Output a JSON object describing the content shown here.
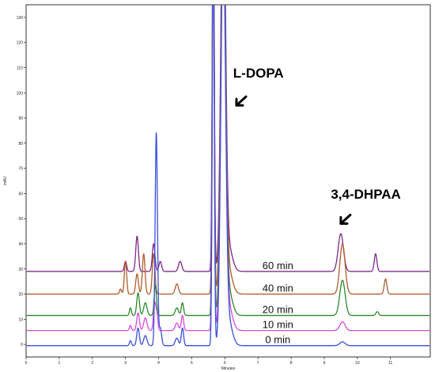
{
  "chart_data": {
    "type": "line",
    "title": "",
    "xlabel": "Minutes",
    "ylabel": "mAU",
    "xlim": [
      0,
      12.2
    ],
    "ylim": [
      -5,
      135
    ],
    "x_ticks": [
      0,
      1,
      2,
      3,
      4,
      5,
      6,
      7,
      8,
      9,
      10,
      11
    ],
    "y_ticks": [
      0,
      10,
      20,
      30,
      40,
      50,
      60,
      70,
      80,
      90,
      100,
      110,
      120,
      130
    ],
    "grid": false,
    "legend": "none",
    "series": [
      {
        "name": "0 min",
        "color": "#3a4fd8",
        "baseline": -0.5,
        "peaks": [
          [
            3.15,
            2,
            0.03
          ],
          [
            3.38,
            7,
            0.04
          ],
          [
            3.6,
            4,
            0.05
          ],
          [
            3.93,
            84.5,
            0.035
          ],
          [
            4.05,
            7,
            0.04
          ],
          [
            4.55,
            3,
            0.05
          ],
          [
            4.72,
            7,
            0.035
          ],
          [
            5.65,
            160,
            0.03
          ],
          [
            5.95,
            160,
            0.07
          ],
          [
            6.1,
            10,
            0.12
          ],
          [
            9.55,
            1.5,
            0.08
          ]
        ]
      },
      {
        "name": "10 min",
        "color": "#d84ad8",
        "baseline": 5.5,
        "peaks": [
          [
            3.15,
            2,
            0.03
          ],
          [
            3.38,
            7,
            0.04
          ],
          [
            3.6,
            5,
            0.05
          ],
          [
            3.88,
            11,
            0.035
          ],
          [
            3.95,
            6,
            0.03
          ],
          [
            4.55,
            3,
            0.05
          ],
          [
            4.72,
            6,
            0.035
          ],
          [
            5.65,
            160,
            0.03
          ],
          [
            5.95,
            160,
            0.07
          ],
          [
            6.1,
            10,
            0.12
          ],
          [
            9.55,
            3.5,
            0.08
          ]
        ]
      },
      {
        "name": "20 min",
        "color": "#2a8a2a",
        "baseline": 11.5,
        "peaks": [
          [
            3.15,
            3,
            0.03
          ],
          [
            3.38,
            9,
            0.04
          ],
          [
            3.6,
            5,
            0.05
          ],
          [
            3.9,
            12,
            0.035
          ],
          [
            4.55,
            3,
            0.05
          ],
          [
            4.72,
            5,
            0.035
          ],
          [
            5.65,
            160,
            0.03
          ],
          [
            5.95,
            160,
            0.07
          ],
          [
            6.1,
            10,
            0.12
          ],
          [
            9.55,
            14,
            0.08
          ],
          [
            10.6,
            1.5,
            0.04
          ]
        ]
      },
      {
        "name": "40 min",
        "color": "#b05a2a",
        "baseline": 20,
        "peaks": [
          [
            2.85,
            2,
            0.03
          ],
          [
            3.0,
            13,
            0.035
          ],
          [
            3.35,
            8,
            0.04
          ],
          [
            3.55,
            16,
            0.04
          ],
          [
            3.85,
            16,
            0.04
          ],
          [
            4.55,
            4,
            0.05
          ],
          [
            5.65,
            160,
            0.03
          ],
          [
            5.95,
            160,
            0.07
          ],
          [
            6.1,
            10,
            0.12
          ],
          [
            9.55,
            20,
            0.08
          ],
          [
            10.85,
            6,
            0.04
          ]
        ]
      },
      {
        "name": "60 min",
        "color": "#7a2a8a",
        "baseline": 29,
        "peaks": [
          [
            3.0,
            4,
            0.035
          ],
          [
            3.35,
            14,
            0.04
          ],
          [
            3.85,
            11,
            0.04
          ],
          [
            4.05,
            4,
            0.04
          ],
          [
            4.65,
            4,
            0.05
          ],
          [
            5.65,
            160,
            0.03
          ],
          [
            5.95,
            160,
            0.07
          ],
          [
            6.1,
            10,
            0.12
          ],
          [
            9.5,
            15,
            0.08
          ],
          [
            10.55,
            7,
            0.04
          ]
        ]
      }
    ],
    "annotations": [
      {
        "text": "L-DOPA",
        "x": 6.25,
        "y": 106,
        "arrow_to": [
          6.35,
          95
        ]
      },
      {
        "text": "3,4-DHPAA",
        "x": 9.2,
        "y": 58,
        "arrow_to": [
          9.5,
          48
        ]
      }
    ]
  }
}
